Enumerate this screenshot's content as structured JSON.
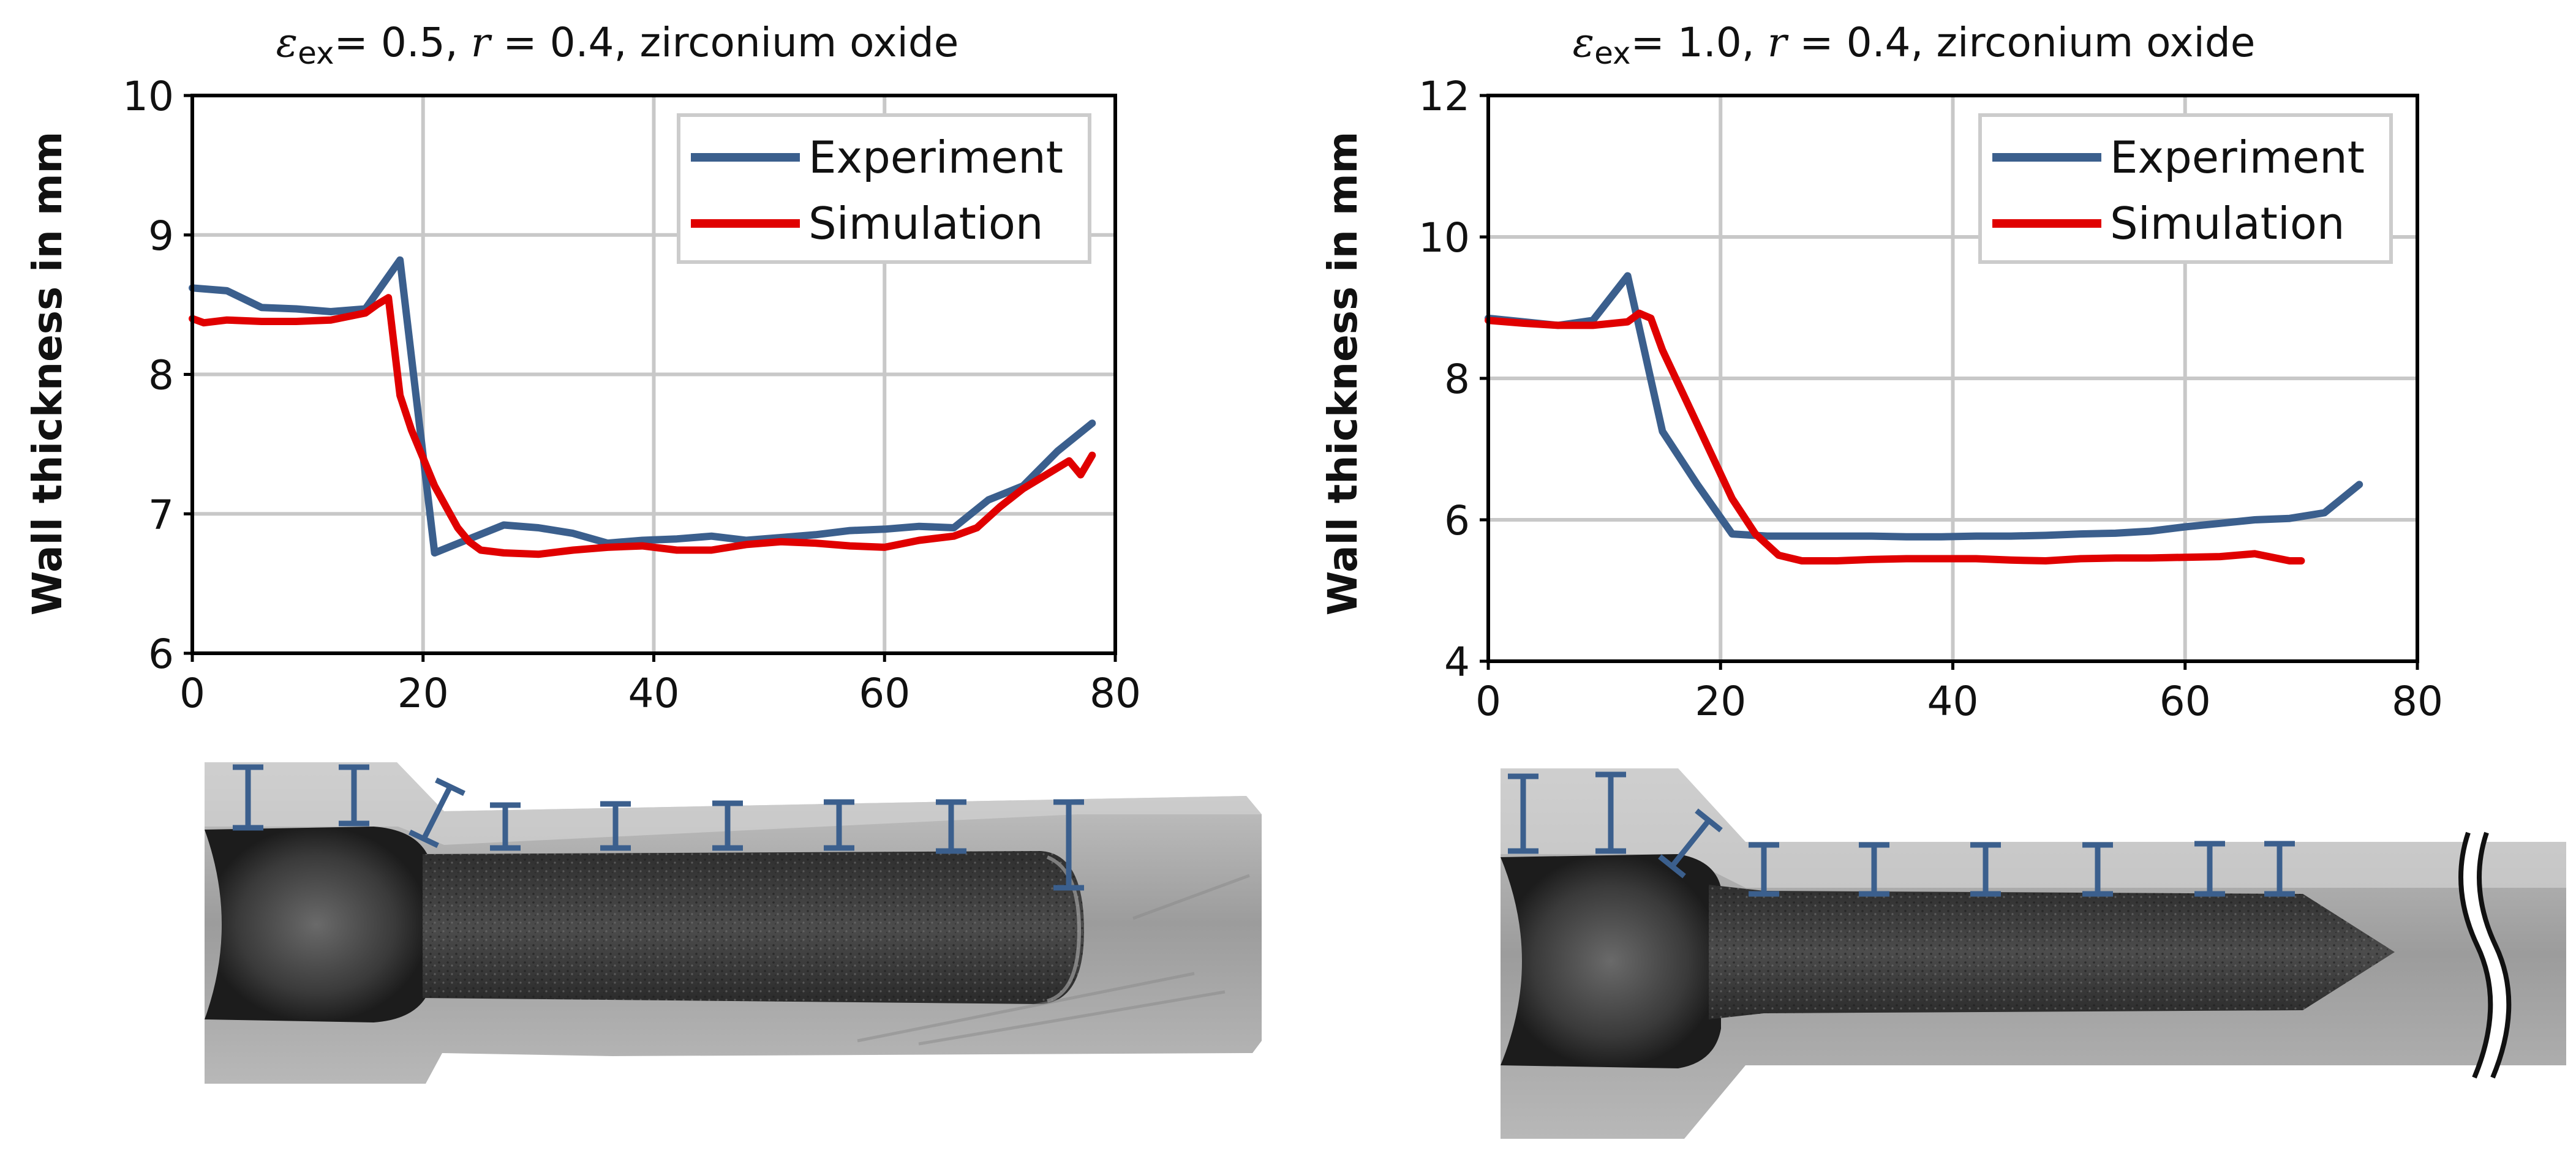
{
  "chart_data": [
    {
      "type": "line",
      "title": {
        "eps": "ε",
        "sub": "ex",
        "rest1": "= 0.5, ",
        "r": "r",
        "rest2": " = 0.4, zirconium oxide"
      },
      "xlabel": "",
      "ylabel": "Wall thickness in mm",
      "xlim": [
        0,
        80
      ],
      "ylim": [
        6,
        10
      ],
      "xticks": [
        "0",
        "20",
        "40",
        "60",
        "80"
      ],
      "yticks": [
        "6",
        "7",
        "8",
        "9",
        "10"
      ],
      "grid": true,
      "legend_position": "top-right",
      "series": [
        {
          "name": "Experiment",
          "color": "#3b5f8d",
          "x": [
            0,
            3,
            6,
            9,
            12,
            15,
            18,
            21,
            24,
            27,
            30,
            33,
            36,
            39,
            42,
            45,
            48,
            51,
            54,
            57,
            60,
            63,
            66,
            69,
            72,
            75,
            78
          ],
          "y": [
            8.62,
            8.6,
            8.48,
            8.47,
            8.45,
            8.47,
            8.82,
            6.72,
            6.82,
            6.92,
            6.9,
            6.86,
            6.79,
            6.81,
            6.82,
            6.84,
            6.81,
            6.83,
            6.85,
            6.88,
            6.89,
            6.91,
            6.9,
            7.1,
            7.2,
            7.45,
            7.65
          ]
        },
        {
          "name": "Simulation",
          "color": "#e00000",
          "x": [
            0,
            1,
            3,
            6,
            9,
            12,
            15,
            16,
            17,
            18,
            19,
            20,
            21,
            22,
            23,
            24,
            25,
            27,
            30,
            33,
            36,
            39,
            42,
            45,
            48,
            51,
            54,
            57,
            60,
            63,
            66,
            68,
            70,
            72,
            74,
            76,
            77,
            78
          ],
          "y": [
            8.4,
            8.37,
            8.39,
            8.38,
            8.38,
            8.39,
            8.44,
            8.5,
            8.55,
            7.85,
            7.6,
            7.4,
            7.2,
            7.05,
            6.9,
            6.8,
            6.74,
            6.72,
            6.71,
            6.74,
            6.76,
            6.77,
            6.74,
            6.74,
            6.78,
            6.8,
            6.79,
            6.77,
            6.76,
            6.81,
            6.84,
            6.9,
            7.05,
            7.18,
            7.28,
            7.38,
            7.28,
            7.42
          ]
        }
      ]
    },
    {
      "type": "line",
      "title": {
        "eps": "ε",
        "sub": "ex",
        "rest1": "= 1.0, ",
        "r": "r",
        "rest2": " = 0.4, zirconium oxide"
      },
      "xlabel": "",
      "ylabel": "Wall thickness in mm",
      "xlim": [
        0,
        80
      ],
      "ylim": [
        4,
        12
      ],
      "xticks": [
        "0",
        "20",
        "40",
        "60",
        "80"
      ],
      "yticks": [
        "4",
        "6",
        "8",
        "10",
        "12"
      ],
      "grid": true,
      "legend_position": "top-right",
      "series": [
        {
          "name": "Experiment",
          "color": "#3b5f8d",
          "x": [
            0,
            3,
            6,
            9,
            12,
            15,
            18,
            21,
            24,
            27,
            30,
            33,
            36,
            39,
            42,
            45,
            48,
            51,
            54,
            57,
            60,
            63,
            66,
            69,
            72,
            75
          ],
          "y": [
            8.85,
            8.8,
            8.75,
            8.82,
            9.45,
            7.25,
            6.5,
            5.8,
            5.77,
            5.77,
            5.77,
            5.77,
            5.76,
            5.76,
            5.77,
            5.77,
            5.78,
            5.8,
            5.81,
            5.84,
            5.9,
            5.95,
            6.0,
            6.02,
            6.1,
            6.5
          ]
        },
        {
          "name": "Simulation",
          "color": "#e00000",
          "x": [
            0,
            3,
            6,
            9,
            12,
            13,
            14,
            15,
            17,
            19,
            21,
            23,
            25,
            27,
            30,
            33,
            36,
            39,
            42,
            45,
            48,
            51,
            54,
            57,
            60,
            63,
            66,
            69,
            70
          ],
          "y": [
            8.82,
            8.78,
            8.75,
            8.75,
            8.8,
            8.92,
            8.85,
            8.4,
            7.7,
            7.0,
            6.3,
            5.8,
            5.5,
            5.42,
            5.42,
            5.44,
            5.45,
            5.45,
            5.45,
            5.43,
            5.42,
            5.45,
            5.46,
            5.46,
            5.47,
            5.48,
            5.52,
            5.42,
            5.42
          ]
        }
      ]
    }
  ],
  "photos": [
    {
      "name": "specimen-photo-left",
      "gauges": 9,
      "break_mark": false
    },
    {
      "name": "specimen-photo-right",
      "gauges": 9,
      "break_mark": true
    }
  ]
}
